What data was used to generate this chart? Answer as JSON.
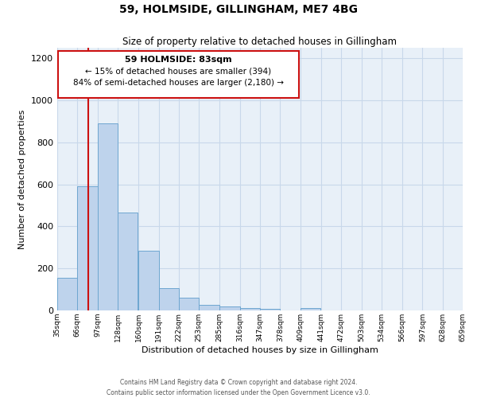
{
  "title": "59, HOLMSIDE, GILLINGHAM, ME7 4BG",
  "subtitle": "Size of property relative to detached houses in Gillingham",
  "xlabel": "Distribution of detached houses by size in Gillingham",
  "ylabel": "Number of detached properties",
  "footer_line1": "Contains HM Land Registry data © Crown copyright and database right 2024.",
  "footer_line2": "Contains public sector information licensed under the Open Government Licence v3.0.",
  "bin_labels": [
    "35sqm",
    "66sqm",
    "97sqm",
    "128sqm",
    "160sqm",
    "191sqm",
    "222sqm",
    "253sqm",
    "285sqm",
    "316sqm",
    "347sqm",
    "378sqm",
    "409sqm",
    "441sqm",
    "472sqm",
    "503sqm",
    "534sqm",
    "566sqm",
    "597sqm",
    "628sqm",
    "659sqm"
  ],
  "bar_values": [
    155,
    590,
    890,
    465,
    285,
    105,
    60,
    27,
    18,
    12,
    8,
    0,
    10,
    0,
    0,
    0,
    0,
    0,
    0,
    0
  ],
  "bar_color": "#bed3ec",
  "bar_edge_color": "#6ea6d0",
  "bg_color": "#e8f0f8",
  "grid_color": "#c8d8ea",
  "ann_box_color": "#cc1111",
  "red_line_color": "#cc1111",
  "property_line_x": 83,
  "bin_edges": [
    35,
    66,
    97,
    128,
    160,
    191,
    222,
    253,
    285,
    316,
    347,
    378,
    409,
    441,
    472,
    503,
    534,
    566,
    597,
    628,
    659
  ],
  "ann_line1": "59 HOLMSIDE: 83sqm",
  "ann_line2": "← 15% of detached houses are smaller (394)",
  "ann_line3": "84% of semi-detached houses are larger (2,180) →",
  "ylim": [
    0,
    1250
  ],
  "yticks": [
    0,
    200,
    400,
    600,
    800,
    1000,
    1200
  ]
}
